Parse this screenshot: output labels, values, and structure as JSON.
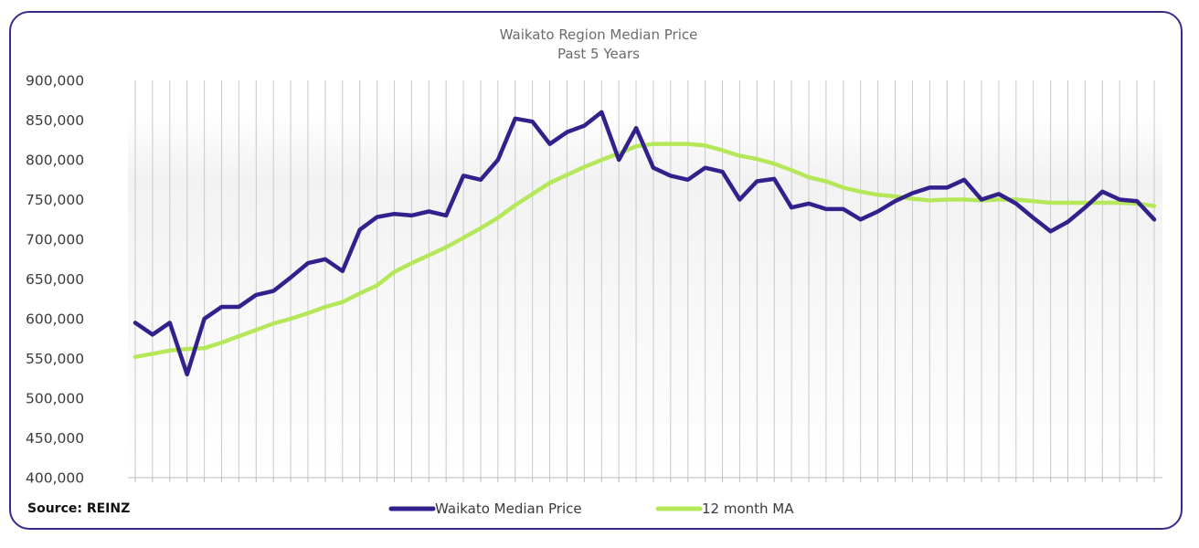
{
  "source": "Source: REINZ",
  "chart_data": {
    "type": "line",
    "title": "Waikato Region Median Price",
    "subtitle": "Past 5 Years",
    "xlabel": "",
    "ylabel": "",
    "ylim": [
      400000,
      900000
    ],
    "yticks": [
      400000,
      450000,
      500000,
      550000,
      600000,
      650000,
      700000,
      750000,
      800000,
      850000,
      900000
    ],
    "ytick_labels": [
      "400,000",
      "450,000",
      "500,000",
      "550,000",
      "600,000",
      "650,000",
      "700,000",
      "750,000",
      "800,000",
      "850,000",
      "900,000"
    ],
    "grid": "vertical",
    "legend_position": "bottom",
    "x": [
      1,
      2,
      3,
      4,
      5,
      6,
      7,
      8,
      9,
      10,
      11,
      12,
      13,
      14,
      15,
      16,
      17,
      18,
      19,
      20,
      21,
      22,
      23,
      24,
      25,
      26,
      27,
      28,
      29,
      30,
      31,
      32,
      33,
      34,
      35,
      36,
      37,
      38,
      39,
      40,
      41,
      42,
      43,
      44,
      45,
      46,
      47,
      48,
      49,
      50,
      51,
      52,
      53,
      54,
      55,
      56,
      57,
      58,
      59,
      60
    ],
    "series": [
      {
        "name": "Waikato Median Price",
        "color": "#33208c",
        "values": [
          595000,
          580000,
          595000,
          530000,
          600000,
          615000,
          615000,
          630000,
          635000,
          652000,
          670000,
          675000,
          660000,
          712000,
          728000,
          732000,
          730000,
          735000,
          730000,
          780000,
          775000,
          800000,
          852000,
          848000,
          820000,
          835000,
          843000,
          860000,
          800000,
          840000,
          790000,
          780000,
          775000,
          790000,
          785000,
          750000,
          773000,
          776000,
          740000,
          745000,
          738000,
          738000,
          725000,
          735000,
          748000,
          758000,
          765000,
          765000,
          775000,
          750000,
          757000,
          745000,
          727000,
          710000,
          722000,
          740000,
          760000,
          750000,
          748000,
          725000
        ]
      },
      {
        "name": "12 month MA",
        "color": "#b4e85a",
        "values": [
          552000,
          556000,
          560000,
          562000,
          563000,
          570000,
          578000,
          586000,
          594000,
          600000,
          607000,
          615000,
          621000,
          632000,
          642000,
          659000,
          670000,
          680000,
          690000,
          702000,
          714000,
          727000,
          743000,
          757000,
          771000,
          781000,
          791000,
          800000,
          808000,
          817000,
          820000,
          820000,
          820000,
          818000,
          812000,
          805000,
          801000,
          795000,
          787000,
          778000,
          773000,
          765000,
          760000,
          756000,
          754000,
          751000,
          749000,
          750000,
          750000,
          749000,
          750000,
          750000,
          748000,
          746000,
          746000,
          746000,
          746000,
          746000,
          745000,
          742000
        ]
      }
    ]
  }
}
